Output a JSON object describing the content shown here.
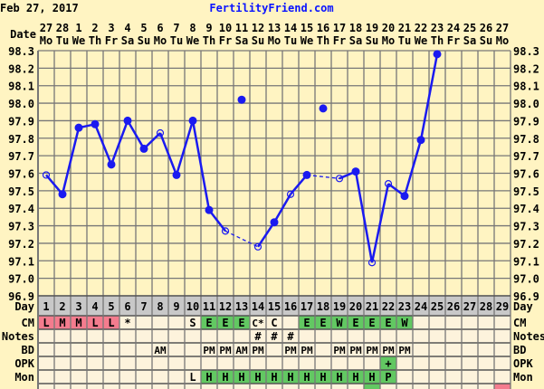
{
  "header": {
    "date": "Feb 27, 2017",
    "site": "FertilityFriend.com"
  },
  "colors": {
    "background": "#FFF4C2",
    "table_bg": "#FDF3DC",
    "day_row": "#C8C8C8",
    "grid": "#777777",
    "line": "#1A1AF0",
    "pink": "#F47C8E",
    "green": "#62C862"
  },
  "chart_data": {
    "type": "line",
    "ylim": [
      96.9,
      98.3
    ],
    "yticks": [
      "98.3",
      "98.2",
      "98.1",
      "98.0",
      "97.9",
      "97.8",
      "97.7",
      "97.6",
      "97.5",
      "97.4",
      "97.3",
      "97.2",
      "97.1",
      "97.0",
      "96.9"
    ],
    "date_label": "Date",
    "dates": [
      "27",
      "28",
      "1",
      "2",
      "3",
      "4",
      "5",
      "6",
      "7",
      "8",
      "9",
      "10",
      "11",
      "12",
      "13",
      "14",
      "15",
      "16",
      "17",
      "18",
      "19",
      "20",
      "21",
      "22",
      "23",
      "24",
      "25",
      "26",
      "27"
    ],
    "weekdays": [
      "Mo",
      "Tu",
      "We",
      "Th",
      "Fr",
      "Sa",
      "Su",
      "Mo",
      "Tu",
      "We",
      "Th",
      "Fr",
      "Sa",
      "Su",
      "Mo",
      "Tu",
      "We",
      "Th",
      "Fr",
      "Sa",
      "Su",
      "Mo",
      "Tu",
      "We",
      "Th",
      "Fr",
      "Sa",
      "Su",
      "Mo"
    ],
    "days": [
      "1",
      "2",
      "3",
      "4",
      "5",
      "6",
      "7",
      "8",
      "9",
      "10",
      "11",
      "12",
      "13",
      "14",
      "15",
      "16",
      "17",
      "18",
      "19",
      "20",
      "21",
      "22",
      "23",
      "24",
      "25",
      "26",
      "27",
      "28",
      "29"
    ],
    "temps": [
      97.59,
      97.48,
      97.86,
      97.88,
      97.65,
      97.9,
      97.74,
      97.83,
      97.59,
      97.9,
      97.39,
      97.27,
      98.02,
      97.18,
      97.32,
      97.48,
      97.59,
      97.97,
      97.57,
      97.61,
      97.09,
      97.54,
      97.47,
      97.79,
      98.28,
      null,
      null,
      null,
      null
    ],
    "open_circle_days": [
      1,
      8,
      12,
      14,
      16,
      19,
      21,
      22
    ],
    "excluded_days": [
      13,
      18
    ],
    "grid": true
  },
  "rows": [
    {
      "label": "CM",
      "cells": [
        "L",
        "M",
        "M",
        "L",
        "L",
        "*",
        "",
        "",
        "",
        "S",
        "E",
        "E",
        "E",
        "C*",
        "C",
        "",
        "E",
        "E",
        "W",
        "E",
        "E",
        "E",
        "W",
        "",
        "",
        "",
        "",
        "",
        ""
      ],
      "colors": [
        "pink",
        "pink",
        "pink",
        "pink",
        "pink",
        "",
        "",
        "",
        "",
        "",
        "green",
        "green",
        "green",
        "",
        "",
        "",
        "green",
        "green",
        "green",
        "green",
        "green",
        "green",
        "green",
        "",
        "",
        "",
        "",
        "",
        ""
      ]
    },
    {
      "label": "Notes",
      "cells": [
        "",
        "",
        "",
        "",
        "",
        "",
        "",
        "",
        "",
        "",
        "",
        "",
        "",
        "#",
        "#",
        "#",
        "",
        "",
        "",
        "",
        "",
        "",
        "",
        "",
        "",
        "",
        "",
        "",
        ""
      ],
      "colors": []
    },
    {
      "label": "BD",
      "cells": [
        "",
        "",
        "",
        "",
        "",
        "",
        "",
        "AM",
        "",
        "",
        "PM",
        "PM",
        "AM",
        "PM",
        "",
        "PM",
        "PM",
        "",
        "PM",
        "PM",
        "PM",
        "PM",
        "PM",
        "",
        "",
        "",
        "",
        "",
        ""
      ],
      "colors": []
    },
    {
      "label": "OPK",
      "cells": [
        "",
        "",
        "",
        "",
        "",
        "",
        "",
        "",
        "",
        "",
        "",
        "",
        "",
        "",
        "",
        "",
        "",
        "",
        "",
        "",
        "",
        "+",
        "",
        "",
        "",
        "",
        "",
        "",
        ""
      ],
      "colors": [
        "",
        "",
        "",
        "",
        "",
        "",
        "",
        "",
        "",
        "",
        "",
        "",
        "",
        "",
        "",
        "",
        "",
        "",
        "",
        "",
        "",
        "green",
        "",
        "",
        "",
        "",
        "",
        "",
        ""
      ]
    },
    {
      "label": "Mon",
      "cells": [
        "",
        "",
        "",
        "",
        "",
        "",
        "",
        "",
        "",
        "L",
        "H",
        "H",
        "H",
        "H",
        "H",
        "H",
        "H",
        "H",
        "H",
        "H",
        "H",
        "P",
        "",
        "",
        "",
        "",
        "",
        "",
        ""
      ],
      "colors": [
        "",
        "",
        "",
        "",
        "",
        "",
        "",
        "",
        "",
        "",
        "green",
        "green",
        "green",
        "green",
        "green",
        "green",
        "green",
        "green",
        "green",
        "green",
        "green",
        "green",
        "",
        "",
        "",
        "",
        "",
        "",
        ""
      ]
    },
    {
      "label": "",
      "cells": [
        "",
        "",
        "",
        "",
        "",
        "",
        "",
        "",
        "",
        "",
        "",
        "",
        "",
        "",
        "",
        "",
        "",
        "",
        "",
        "",
        "",
        "",
        "",
        "",
        "",
        "",
        "",
        "",
        ""
      ],
      "colors": [
        "",
        "",
        "",
        "",
        "",
        "",
        "",
        "",
        "",
        "",
        "",
        "",
        "",
        "",
        "",
        "",
        "",
        "",
        "",
        "",
        "green",
        "",
        "",
        "",
        "",
        "",
        "",
        "",
        "pink"
      ]
    }
  ],
  "day_label": "Day"
}
